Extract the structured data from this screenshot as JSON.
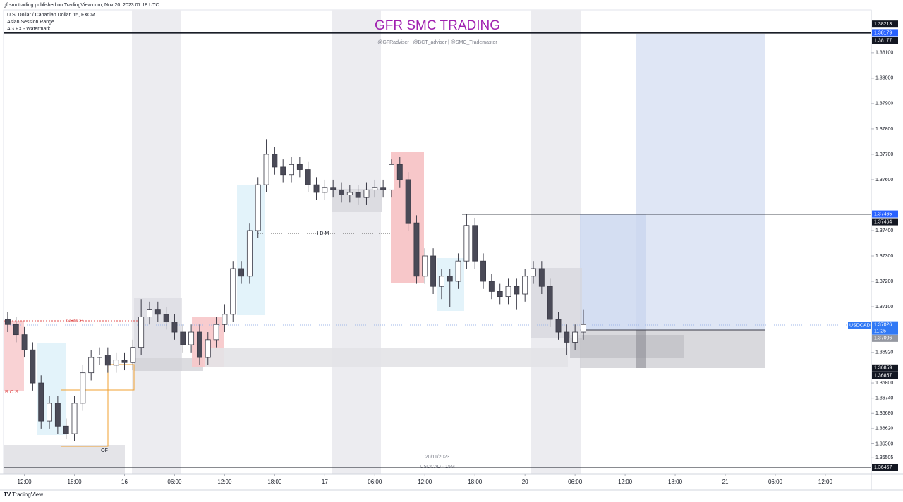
{
  "header": {
    "published": "gfrsmctrading published on TradingView.com, Nov 20, 2023 07:18 UTC",
    "symbol_line": "U.S. Dollar / Canadian Dollar, 15, FXCM",
    "indicators": [
      "Asian Session Range",
      "AG FX - Watermark"
    ]
  },
  "footer": "TradingView",
  "chart_data": {
    "type": "candlestick",
    "title": "GFR SMC TRADING",
    "subtitle": "@GFRadviser  |  @BCT_adviser  |  @SMC_Trademaster",
    "watermark": [
      "20/11/2023",
      "USDCAD · 15M"
    ],
    "annotations": {
      "choch": "CHoCH",
      "bos": "B O S",
      "idm": "I D M",
      "of": "OF"
    },
    "up_color": "#ffffff",
    "down_color": "#4a4a57",
    "wick_color": "#3a3a46",
    "open": [
      1.3705,
      1.3703,
      1.3699,
      1.3693,
      1.368,
      1.3665,
      1.3672,
      1.3663,
      1.366,
      1.3672,
      1.3684,
      1.369,
      1.3691,
      1.3687,
      1.3689,
      1.3688,
      1.3694,
      1.3706,
      1.3709,
      1.3707,
      1.3704,
      1.37,
      1.3695,
      1.37,
      1.369,
      1.3697,
      1.3703,
      1.3707,
      1.3725,
      1.3722,
      1.374,
      1.3758,
      1.377,
      1.3765,
      1.3762,
      1.3766,
      1.3764,
      1.3758,
      1.3755,
      1.3757,
      1.3756,
      1.3754,
      1.3755,
      1.3753,
      1.3756,
      1.3757,
      1.3756,
      1.3766,
      1.376,
      1.3743,
      1.3722,
      1.373,
      1.3718,
      1.3722,
      1.372,
      1.3728,
      1.3742,
      1.3728,
      1.372,
      1.3716,
      1.3714,
      1.3718,
      1.3715,
      1.3722,
      1.3725,
      1.3718,
      1.3705,
      1.37,
      1.3696,
      1.37
    ],
    "high": [
      1.3708,
      1.3706,
      1.3702,
      1.3696,
      1.3683,
      1.3675,
      1.3675,
      1.3666,
      1.3675,
      1.3687,
      1.3693,
      1.3694,
      1.3694,
      1.3692,
      1.3692,
      1.3697,
      1.3713,
      1.3712,
      1.3712,
      1.371,
      1.3707,
      1.3703,
      1.3703,
      1.3703,
      1.37,
      1.3706,
      1.3711,
      1.3728,
      1.3728,
      1.3743,
      1.3761,
      1.3776,
      1.3773,
      1.3768,
      1.3769,
      1.3769,
      1.3767,
      1.3761,
      1.376,
      1.376,
      1.3759,
      1.3758,
      1.3758,
      1.3759,
      1.376,
      1.376,
      1.3768,
      1.3769,
      1.3763,
      1.3746,
      1.3733,
      1.3733,
      1.3725,
      1.3725,
      1.3731,
      1.37465,
      1.3745,
      1.3731,
      1.3723,
      1.3719,
      1.3721,
      1.3721,
      1.3725,
      1.3728,
      1.3728,
      1.3721,
      1.3708,
      1.3703,
      1.3703,
      1.3709
    ],
    "low": [
      1.37,
      1.3696,
      1.369,
      1.3677,
      1.3662,
      1.3662,
      1.366,
      1.3658,
      1.3657,
      1.3669,
      1.3681,
      1.3687,
      1.3684,
      1.3684,
      1.3685,
      1.3685,
      1.3691,
      1.3703,
      1.3704,
      1.3701,
      1.3697,
      1.3692,
      1.3692,
      1.3687,
      1.3687,
      1.3694,
      1.37,
      1.3704,
      1.3719,
      1.3719,
      1.3737,
      1.3755,
      1.3762,
      1.3759,
      1.3759,
      1.3761,
      1.3755,
      1.3752,
      1.3752,
      1.3753,
      1.3751,
      1.3751,
      1.375,
      1.375,
      1.3753,
      1.3753,
      1.3753,
      1.3757,
      1.374,
      1.3719,
      1.3719,
      1.3715,
      1.3713,
      1.371,
      1.3717,
      1.3725,
      1.3725,
      1.3717,
      1.3713,
      1.3711,
      1.3711,
      1.3709,
      1.3712,
      1.3719,
      1.3715,
      1.3702,
      1.3697,
      1.3691,
      1.3693,
      1.3697
    ],
    "close": [
      1.3703,
      1.3699,
      1.3693,
      1.368,
      1.3665,
      1.3672,
      1.3663,
      1.366,
      1.3672,
      1.3684,
      1.369,
      1.3691,
      1.3687,
      1.3689,
      1.3688,
      1.3694,
      1.3706,
      1.3709,
      1.3707,
      1.3704,
      1.37,
      1.3695,
      1.37,
      1.369,
      1.3697,
      1.3703,
      1.3707,
      1.3725,
      1.3722,
      1.374,
      1.3758,
      1.377,
      1.3765,
      1.3762,
      1.3766,
      1.3764,
      1.3758,
      1.3755,
      1.3757,
      1.3756,
      1.3754,
      1.3755,
      1.3753,
      1.3756,
      1.3757,
      1.3756,
      1.3766,
      1.376,
      1.3743,
      1.3722,
      1.373,
      1.3718,
      1.3722,
      1.372,
      1.3728,
      1.3742,
      1.3728,
      1.372,
      1.3716,
      1.3714,
      1.3718,
      1.3715,
      1.3722,
      1.3725,
      1.3718,
      1.3705,
      1.37,
      1.3696,
      1.37,
      1.3703
    ],
    "xlim": [
      0,
      104
    ],
    "xticks": [
      {
        "value": 2.5,
        "label": "12:00"
      },
      {
        "value": 8.5,
        "label": "18:00"
      },
      {
        "value": 14.5,
        "label": "16"
      },
      {
        "value": 20.5,
        "label": "06:00"
      },
      {
        "value": 26.5,
        "label": "12:00"
      },
      {
        "value": 32.5,
        "label": "18:00"
      },
      {
        "value": 38.5,
        "label": "17"
      },
      {
        "value": 44.5,
        "label": "06:00"
      },
      {
        "value": 50.5,
        "label": "12:00"
      },
      {
        "value": 56.5,
        "label": "18:00"
      },
      {
        "value": 62.5,
        "label": "20"
      },
      {
        "value": 68.5,
        "label": "06:00"
      },
      {
        "value": 74.5,
        "label": "12:00"
      },
      {
        "value": 80.5,
        "label": "18:00"
      },
      {
        "value": 86.5,
        "label": "21"
      },
      {
        "value": 92.5,
        "label": "06:00"
      },
      {
        "value": 98.5,
        "label": "12:00"
      }
    ],
    "ylim": [
      1.36442,
      1.38269
    ],
    "yticks": [
      {
        "value": 1.381,
        "label": "1.38100"
      },
      {
        "value": 1.38,
        "label": "1.38000"
      },
      {
        "value": 1.379,
        "label": "1.37900"
      },
      {
        "value": 1.378,
        "label": "1.37800"
      },
      {
        "value": 1.377,
        "label": "1.37700"
      },
      {
        "value": 1.376,
        "label": "1.37600"
      },
      {
        "value": 1.374,
        "label": "1.37400"
      },
      {
        "value": 1.373,
        "label": "1.37300"
      },
      {
        "value": 1.372,
        "label": "1.37200"
      },
      {
        "value": 1.371,
        "label": "1.37100"
      },
      {
        "value": 1.3692,
        "label": "1.36920"
      },
      {
        "value": 1.368,
        "label": "1.36800"
      },
      {
        "value": 1.3674,
        "label": "1.36740"
      },
      {
        "value": 1.3668,
        "label": "1.36680"
      },
      {
        "value": 1.3662,
        "label": "1.36620"
      },
      {
        "value": 1.3656,
        "label": "1.36560"
      },
      {
        "value": 1.36505,
        "label": "1.36505"
      }
    ],
    "price_labels": [
      {
        "value": 1.38213,
        "color": "#131722"
      },
      {
        "value": 1.38179,
        "color": "#2962ff"
      },
      {
        "value": 1.38177,
        "color": "#131722"
      },
      {
        "value": 1.37465,
        "color": "#2962ff"
      },
      {
        "value": 1.37464,
        "color": "#131722"
      },
      {
        "value": 1.37006,
        "color": "#9598a1"
      },
      {
        "value": 1.37006,
        "color": "#9598a1"
      },
      {
        "value": 1.36859,
        "color": "#131722"
      },
      {
        "value": 1.36857,
        "color": "#131722"
      },
      {
        "value": 1.36467,
        "color": "#131722"
      }
    ],
    "last": {
      "symbol": "USDCAD",
      "price": 1.37026,
      "countdown": "11:25",
      "color": "#3179f5"
    }
  }
}
